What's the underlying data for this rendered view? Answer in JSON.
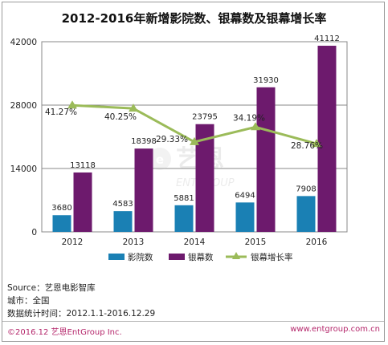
{
  "title": "2012-2016年新增影院数、银幕数及银幕增长率",
  "chart_data": {
    "type": "bar",
    "title": "2012-2016年新增影院数、银幕数及银幕增长率",
    "categories": [
      "2012",
      "2013",
      "2014",
      "2015",
      "2016"
    ],
    "series": [
      {
        "name": "影院数",
        "type": "bar",
        "color": "#1a80b4",
        "values": [
          3680,
          4583,
          5881,
          6494,
          7908
        ]
      },
      {
        "name": "银幕数",
        "type": "bar",
        "color": "#6d1a6d",
        "values": [
          13118,
          18398,
          23795,
          31930,
          41112
        ]
      },
      {
        "name": "银幕增长率",
        "type": "line",
        "color": "#9bbb59",
        "values": [
          41.27,
          40.25,
          29.33,
          34.19,
          28.76
        ],
        "labels": [
          "41.27%",
          "40.25%",
          "29.33%",
          "34.19%",
          "28.76%"
        ]
      }
    ],
    "yticks": [
      "0",
      "14000",
      "28000",
      "42000"
    ],
    "ylim": [
      0,
      42000
    ],
    "grid": true,
    "legend_position": "bottom"
  },
  "watermark": {
    "brand": "艺恩",
    "sub": "ENTGROUP"
  },
  "source_lines": [
    "Source：艺恩电影智库",
    "城市：全国",
    "数据统计时间：2012.1.1-2016.12.29"
  ],
  "footer": {
    "left": "©2016.12 艺恩EntGroup Inc.",
    "right": "www.entgroup.com.cn"
  }
}
